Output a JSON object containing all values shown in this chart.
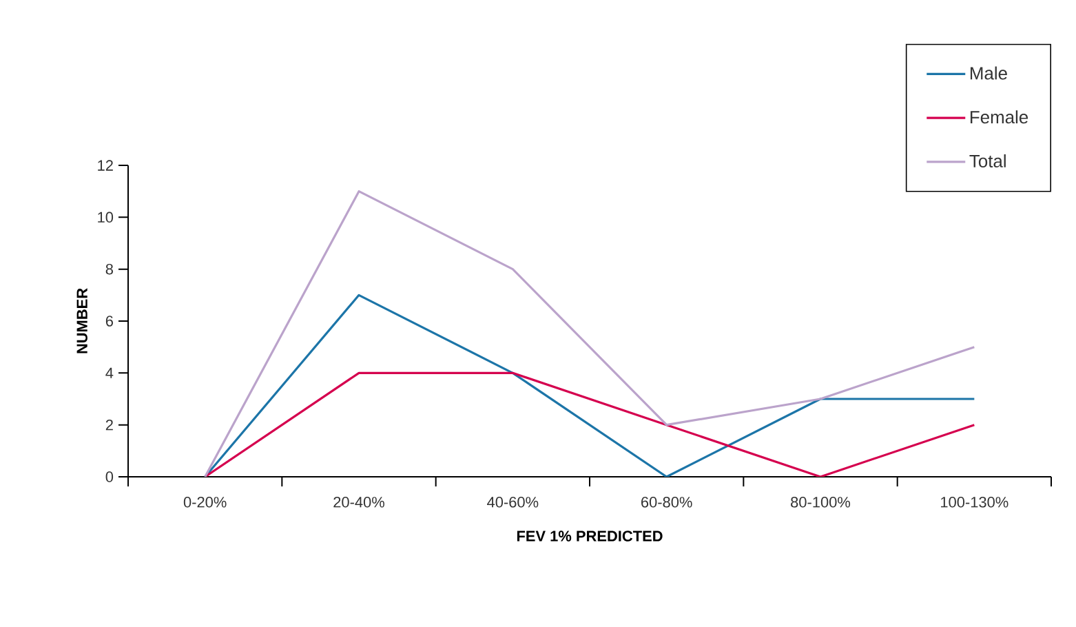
{
  "chart_data": {
    "type": "line",
    "xlabel": "FEV 1% PREDICTED",
    "ylabel": "NUMBER",
    "categories": [
      "0-20%",
      "20-40%",
      "40-60%",
      "60-80%",
      "80-100%",
      "100-130%"
    ],
    "series": [
      {
        "name": "Male",
        "color": "#1c75a8",
        "values": [
          0,
          7,
          4,
          0,
          3,
          3
        ]
      },
      {
        "name": "Female",
        "color": "#d5004e",
        "values": [
          0,
          4,
          4,
          2,
          0,
          2
        ]
      },
      {
        "name": "Total",
        "color": "#bba3cb",
        "values": [
          0,
          11,
          8,
          2,
          3,
          5
        ]
      }
    ],
    "ylim": [
      0,
      12
    ],
    "yticks": [
      0,
      2,
      4,
      6,
      8,
      10,
      12
    ],
    "legend": "top right",
    "marker": "none",
    "line_style": "solid",
    "grid": false
  }
}
